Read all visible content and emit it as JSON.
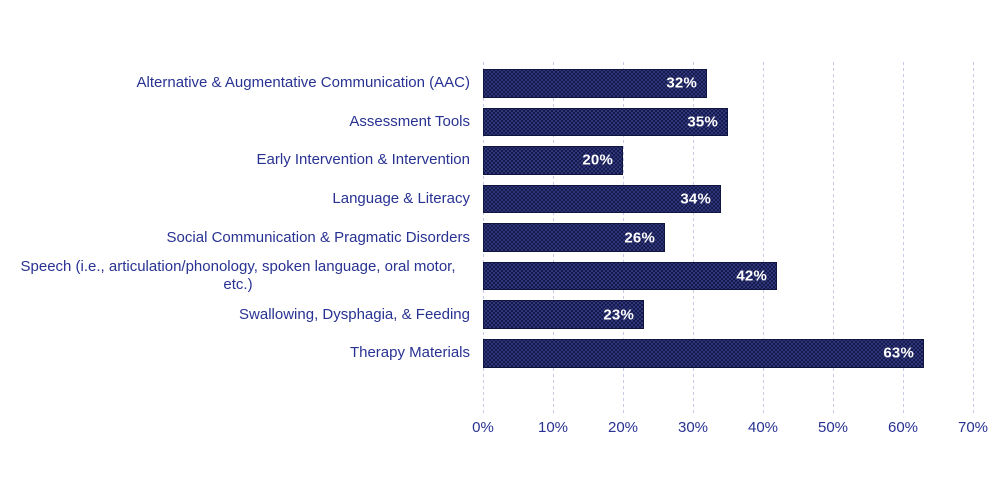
{
  "chart_data": {
    "type": "bar",
    "orientation": "horizontal",
    "title": "",
    "xlabel": "",
    "ylabel": "",
    "categories": [
      "Alternative & Augmentative Communication (AAC)",
      "Assessment Tools",
      "Early Intervention & Intervention",
      "Language & Literacy",
      "Social Communication & Pragmatic Disorders",
      "Speech (i.e., articulation/phonology, spoken language, oral motor, etc.)",
      "Swallowing, Dysphagia, & Feeding",
      "Therapy Materials"
    ],
    "values": [
      32,
      35,
      20,
      34,
      26,
      42,
      23,
      63
    ],
    "value_labels": [
      "32%",
      "35%",
      "20%",
      "34%",
      "26%",
      "42%",
      "23%",
      "63%"
    ],
    "x_ticks": [
      "0%",
      "10%",
      "20%",
      "30%",
      "40%",
      "50%",
      "60%",
      "70%"
    ],
    "xlim": [
      0,
      70
    ],
    "grid": "vertical-dashed",
    "legend": "none",
    "colors": {
      "bar_fill": "#1b2059",
      "bar_border": "#10153f",
      "data_label_text": "#ffffff",
      "axis_text": "#283292",
      "gridline": "#c6c9e8",
      "background": "#ffffff"
    }
  }
}
